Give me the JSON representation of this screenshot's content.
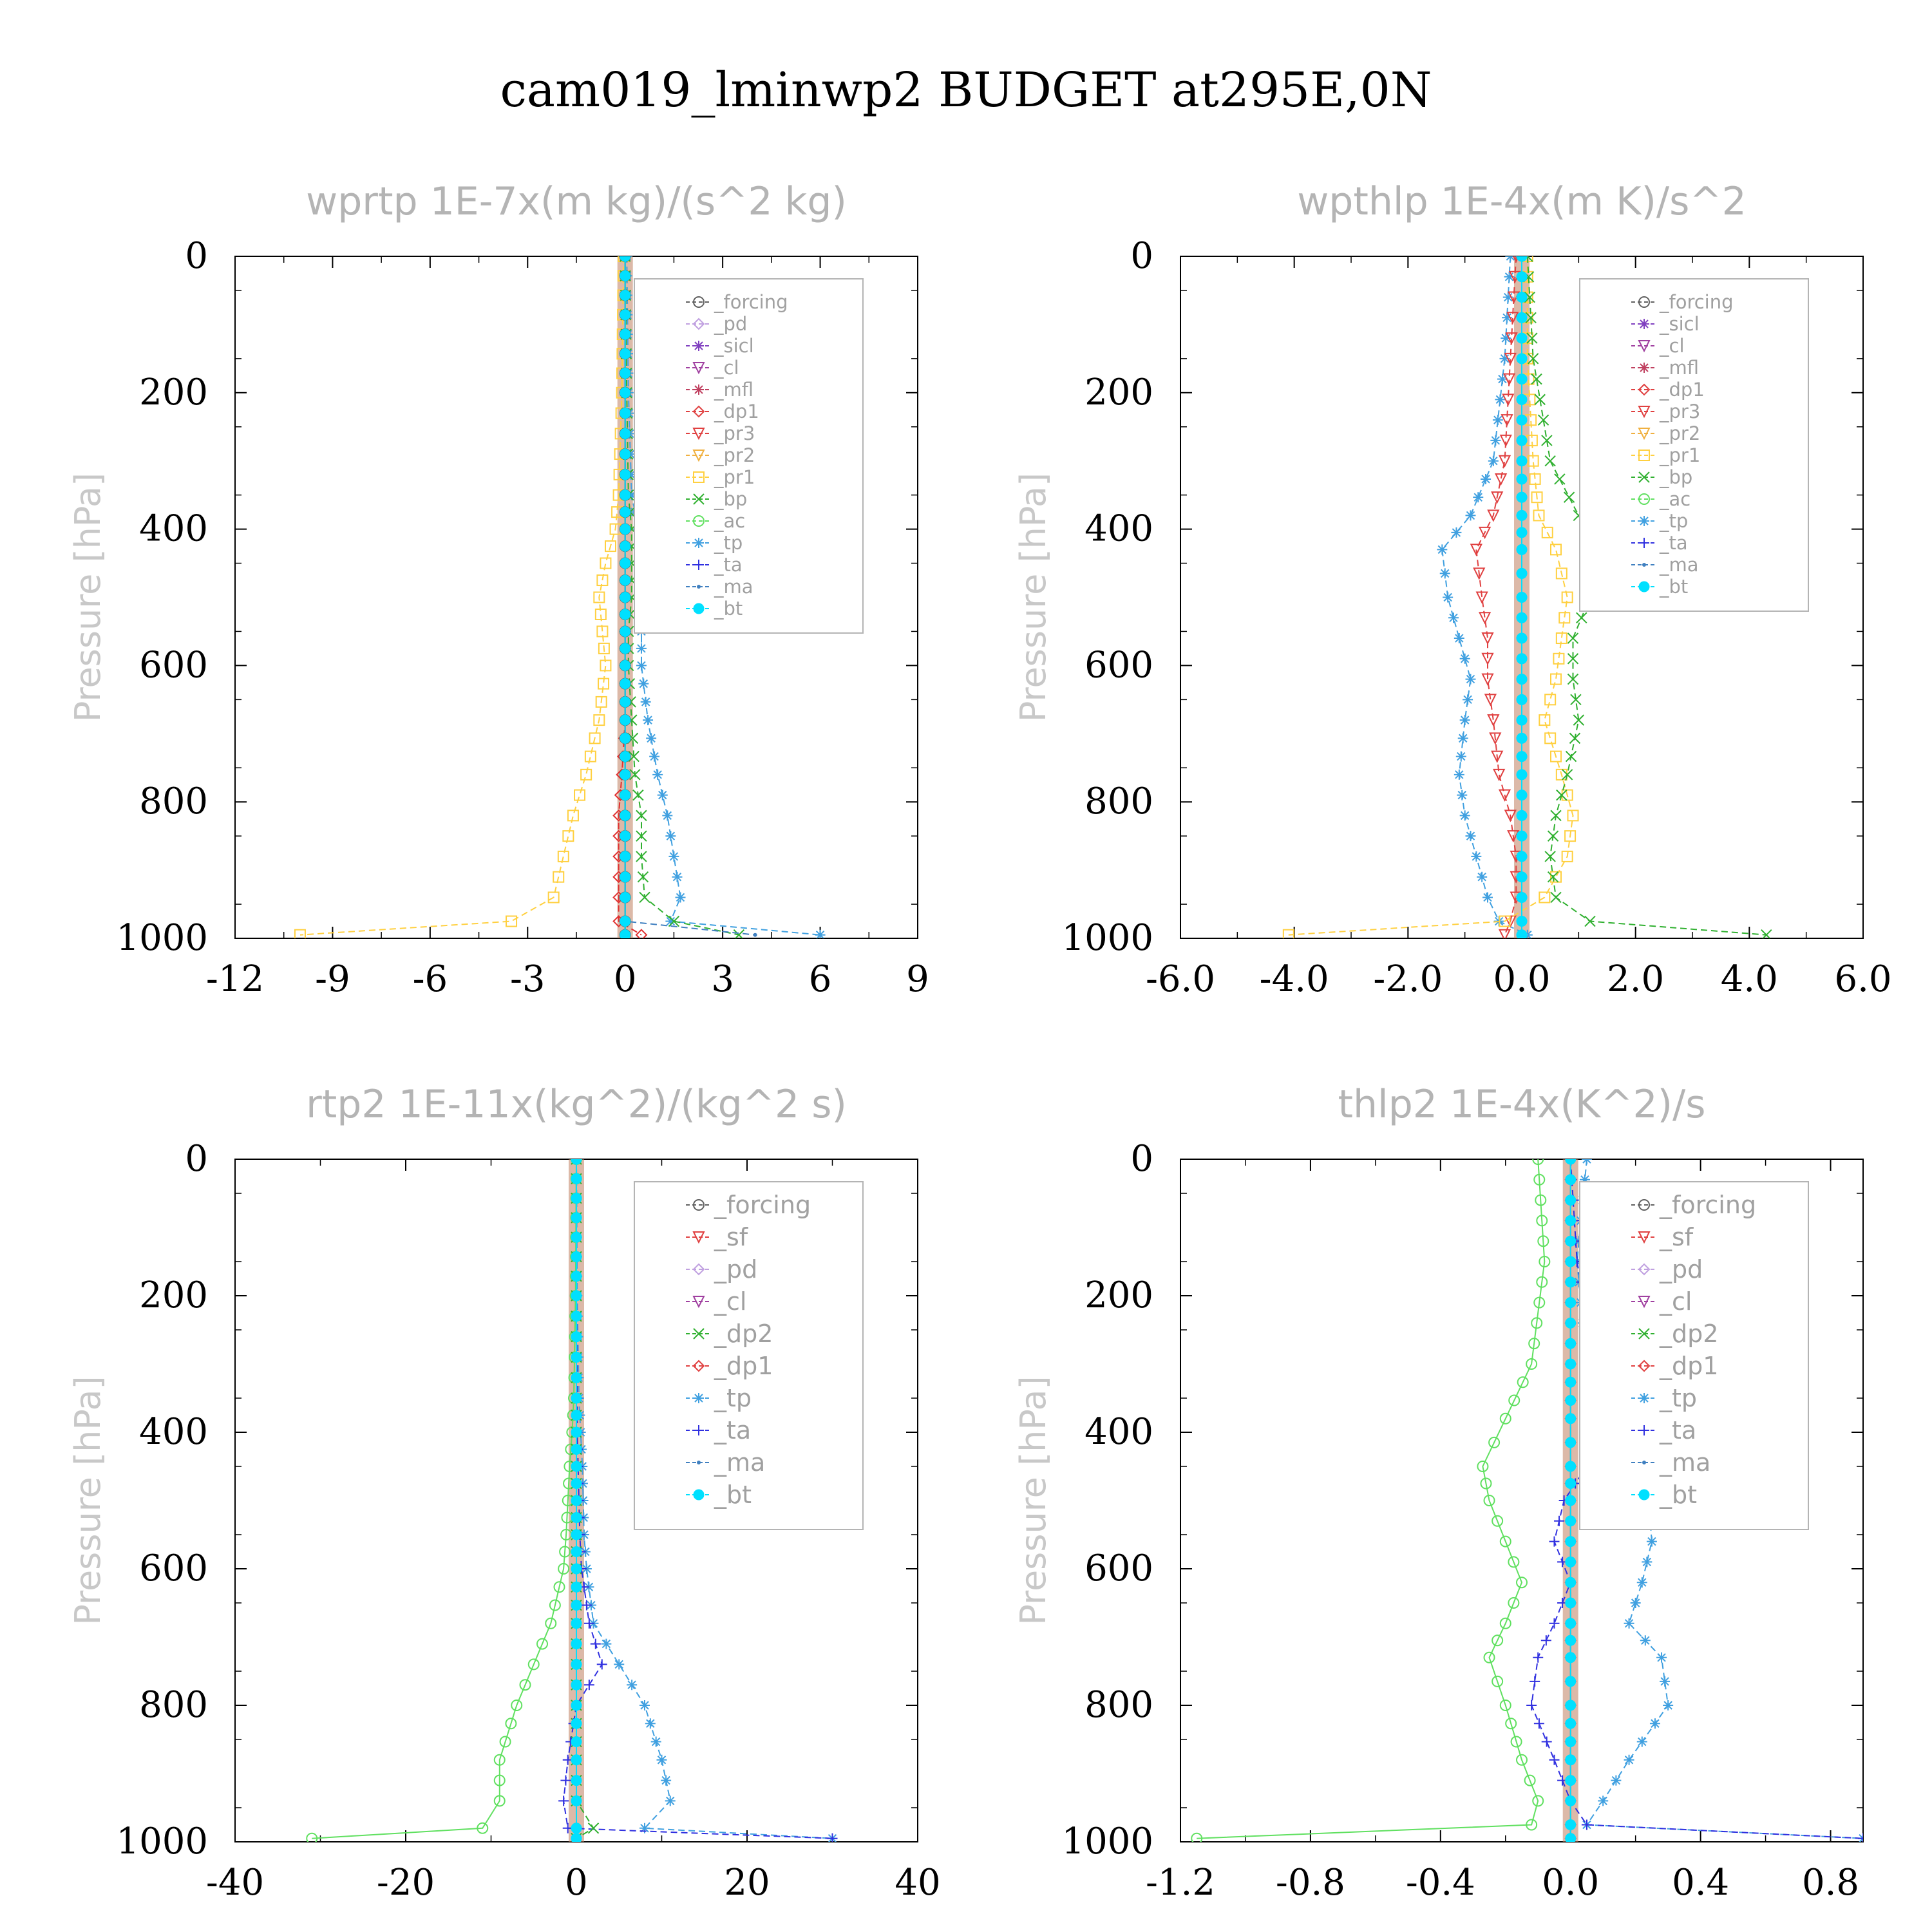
{
  "title": "cam019_lminwp2  BUDGET at295E,0N",
  "chart_data": [
    {
      "type": "line",
      "title": "wprtp   1E-7x(m kg)/(s^2 kg)",
      "ylabel": "Pressure [hPa]",
      "xlim": [
        -12,
        9
      ],
      "ylim": [
        1000,
        0
      ],
      "xticks": [
        "-12",
        "-9",
        "-6",
        "-3",
        "0",
        "3",
        "6",
        "9"
      ],
      "xtick_values": [
        -12,
        -9,
        -6,
        -3,
        0,
        3,
        6,
        9
      ],
      "yticks": [
        "0",
        "200",
        "400",
        "600",
        "800",
        "1000"
      ],
      "ytick_values": [
        0,
        200,
        400,
        600,
        800,
        1000
      ],
      "legend_position": "top-right",
      "legend": [
        "_forcing",
        "_pd",
        "_sicl",
        "_cl",
        "_mfl",
        "_dp1",
        "_pr3",
        "_pr2",
        "_pr1",
        "_bp",
        "_ac",
        "_tp",
        "_ta",
        "_ma",
        "_bt"
      ],
      "series": [
        {
          "name": "_pr1",
          "color": "#ffd040",
          "marker": "square",
          "x": [
            -0.05,
            -0.1,
            -0.2,
            -0.3,
            -0.6,
            -0.8,
            -0.7,
            -0.6,
            -0.8,
            -1.2,
            -1.6,
            -1.9,
            -2.2,
            -3.5,
            -10
          ],
          "y": [
            0,
            200,
            350,
            400,
            450,
            500,
            550,
            600,
            680,
            760,
            820,
            880,
            940,
            975,
            995
          ]
        },
        {
          "name": "_tp",
          "color": "#40a0e0",
          "marker": "asterisk",
          "x": [
            0.05,
            0.1,
            0.2,
            0.4,
            0.6,
            0.6,
            0.5,
            0.5,
            0.7,
            1.0,
            1.3,
            1.5,
            1.7,
            1.4,
            6
          ],
          "y": [
            0,
            200,
            350,
            400,
            450,
            500,
            550,
            600,
            680,
            760,
            820,
            880,
            940,
            975,
            995
          ]
        },
        {
          "name": "_bp",
          "color": "#30b030",
          "marker": "x",
          "x": [
            0.0,
            0.05,
            0.1,
            0.2,
            0.2,
            0.2,
            0.1,
            0.1,
            0.2,
            0.3,
            0.5,
            0.5,
            0.6,
            1.5,
            3.5
          ],
          "y": [
            0,
            200,
            350,
            400,
            450,
            500,
            550,
            600,
            680,
            760,
            820,
            880,
            940,
            975,
            995
          ]
        },
        {
          "name": "_dp1",
          "color": "#e03030",
          "marker": "diamond",
          "x": [
            0,
            0,
            0,
            0,
            0,
            0,
            0,
            0,
            0,
            -0.1,
            -0.2,
            -0.2,
            -0.2,
            -0.2,
            0.5
          ],
          "y": [
            0,
            200,
            350,
            400,
            450,
            500,
            550,
            600,
            680,
            760,
            820,
            880,
            940,
            975,
            995
          ]
        },
        {
          "name": "_ma",
          "color": "#4080c0",
          "marker": "dot",
          "x": [
            0,
            0,
            0,
            0,
            0,
            0,
            0,
            0,
            0,
            0,
            0,
            0,
            0,
            0,
            4
          ],
          "y": [
            0,
            200,
            350,
            400,
            450,
            500,
            550,
            600,
            680,
            760,
            820,
            880,
            940,
            975,
            995
          ]
        },
        {
          "name": "_forcing",
          "color": "#606060",
          "marker": "circle",
          "x": [
            0,
            0,
            0,
            0,
            0,
            0,
            0,
            0,
            0,
            0,
            0,
            0,
            0,
            0,
            0
          ],
          "y": [
            0,
            200,
            350,
            400,
            450,
            500,
            550,
            600,
            680,
            760,
            820,
            880,
            940,
            975,
            995
          ]
        },
        {
          "name": "_bt",
          "color": "#00e0ff",
          "marker": "filled-circle",
          "x": [
            0,
            0,
            0,
            0,
            0,
            0,
            0,
            0,
            0,
            0,
            0,
            0,
            0,
            0,
            0
          ],
          "y": [
            0,
            200,
            350,
            400,
            450,
            500,
            550,
            600,
            680,
            760,
            820,
            880,
            940,
            975,
            995
          ]
        }
      ]
    },
    {
      "type": "line",
      "title": "wpthlp   1E-4x(m K)/s^2",
      "ylabel": "Pressure [hPa]",
      "xlim": [
        -6,
        6
      ],
      "ylim": [
        1000,
        0
      ],
      "xticks": [
        "-6.0",
        "-4.0",
        "-2.0",
        "0.0",
        "2.0",
        "4.0",
        "6.0"
      ],
      "xtick_values": [
        -6,
        -4,
        -2,
        0,
        2,
        4,
        6
      ],
      "yticks": [
        "0",
        "200",
        "400",
        "600",
        "800",
        "1000"
      ],
      "ytick_values": [
        0,
        200,
        400,
        600,
        800,
        1000
      ],
      "legend_position": "top-right",
      "legend": [
        "_forcing",
        "_sicl",
        "_cl",
        "_mfl",
        "_dp1",
        "_pr3",
        "_pr2",
        "_pr1",
        "_bp",
        "_ac",
        "_tp",
        "_ta",
        "_ma",
        "_bt"
      ],
      "series": [
        {
          "name": "_tp",
          "color": "#40a0e0",
          "marker": "asterisk",
          "x": [
            -0.2,
            -0.3,
            -0.5,
            -0.9,
            -1.4,
            -1.3,
            -1.1,
            -0.9,
            -1.0,
            -1.1,
            -1.0,
            -0.8,
            -0.6,
            -0.4,
            0.1
          ],
          "y": [
            0,
            150,
            300,
            380,
            430,
            500,
            560,
            620,
            680,
            760,
            820,
            880,
            940,
            975,
            995
          ]
        },
        {
          "name": "_pr3",
          "color": "#e04040",
          "marker": "triangle-down",
          "x": [
            -0.1,
            -0.2,
            -0.3,
            -0.5,
            -0.8,
            -0.7,
            -0.6,
            -0.6,
            -0.5,
            -0.4,
            -0.2,
            -0.1,
            -0.1,
            -0.2,
            -0.3
          ],
          "y": [
            0,
            150,
            300,
            380,
            430,
            500,
            560,
            620,
            680,
            760,
            820,
            880,
            940,
            975,
            995
          ]
        },
        {
          "name": "_pr1",
          "color": "#ffd040",
          "marker": "square",
          "x": [
            0.1,
            0.1,
            0.2,
            0.3,
            0.6,
            0.8,
            0.7,
            0.6,
            0.4,
            0.7,
            0.9,
            0.8,
            0.4,
            -0.3,
            -4.1
          ],
          "y": [
            0,
            150,
            300,
            380,
            430,
            500,
            560,
            620,
            680,
            760,
            820,
            880,
            940,
            975,
            995
          ]
        },
        {
          "name": "_bp",
          "color": "#30b030",
          "marker": "x",
          "x": [
            0.1,
            0.2,
            0.5,
            1.0,
            1.3,
            1.2,
            0.9,
            0.9,
            1.0,
            0.8,
            0.6,
            0.5,
            0.6,
            1.2,
            4.3
          ],
          "y": [
            0,
            150,
            300,
            380,
            430,
            500,
            560,
            620,
            680,
            760,
            820,
            880,
            940,
            975,
            995
          ]
        },
        {
          "name": "_forcing",
          "color": "#c0b0e0",
          "marker": "diamond",
          "x": [
            0,
            0,
            0,
            0,
            0,
            0,
            0,
            0,
            0,
            0,
            0,
            0,
            0,
            0,
            0
          ],
          "y": [
            0,
            150,
            300,
            380,
            430,
            500,
            560,
            620,
            680,
            760,
            820,
            880,
            940,
            975,
            995
          ]
        },
        {
          "name": "_bt",
          "color": "#00e0ff",
          "marker": "filled-circle",
          "x": [
            0,
            0,
            0,
            0,
            0,
            0,
            0,
            0,
            0,
            0,
            0,
            0,
            0,
            0,
            0
          ],
          "y": [
            0,
            150,
            300,
            380,
            430,
            500,
            560,
            620,
            680,
            760,
            820,
            880,
            940,
            975,
            995
          ]
        }
      ]
    },
    {
      "type": "line",
      "title": "rtp2   1E-11x(kg^2)/(kg^2 s)",
      "ylabel": "Pressure [hPa]",
      "xlim": [
        -40,
        40
      ],
      "ylim": [
        1000,
        0
      ],
      "xticks": [
        "-40",
        "-20",
        "0",
        "20",
        "40"
      ],
      "xtick_values": [
        -40,
        -20,
        0,
        20,
        40
      ],
      "yticks": [
        "0",
        "200",
        "400",
        "600",
        "800",
        "1000"
      ],
      "ytick_values": [
        0,
        200,
        400,
        600,
        800,
        1000
      ],
      "legend_position": "top-right",
      "legend": [
        "_forcing",
        "_sf",
        "_pd",
        "_cl",
        "_dp2",
        "_dp1",
        "_tp",
        "_ta",
        "_ma",
        "_bt"
      ],
      "series": [
        {
          "name": "_dp1",
          "color": "#60e060",
          "marker": "circle",
          "x": [
            0,
            -0.1,
            -0.3,
            -0.5,
            -0.8,
            -1.0,
            -1.2,
            -1.5,
            -3,
            -5,
            -7,
            -9,
            -9,
            -11,
            -31
          ],
          "y": [
            0,
            200,
            350,
            400,
            450,
            500,
            550,
            600,
            680,
            740,
            800,
            880,
            940,
            980,
            995
          ]
        },
        {
          "name": "_tp",
          "color": "#40a0e0",
          "marker": "asterisk",
          "x": [
            0,
            0.1,
            0.3,
            0.5,
            0.7,
            0.8,
            0.9,
            1.2,
            2,
            5,
            8,
            10,
            11,
            8,
            30
          ],
          "y": [
            0,
            200,
            350,
            400,
            450,
            500,
            550,
            600,
            680,
            740,
            800,
            880,
            940,
            980,
            995
          ]
        },
        {
          "name": "_ta",
          "color": "#3030e0",
          "marker": "plus",
          "x": [
            0,
            0,
            0.1,
            0.1,
            0.2,
            0.3,
            0.4,
            0.6,
            1.5,
            3,
            0,
            -1,
            -1.5,
            -1,
            30
          ],
          "y": [
            0,
            200,
            350,
            400,
            450,
            500,
            550,
            600,
            680,
            740,
            800,
            880,
            940,
            980,
            995
          ]
        },
        {
          "name": "_dp2",
          "color": "#30b030",
          "marker": "x",
          "x": [
            0,
            0,
            0,
            0,
            0,
            0,
            0,
            0,
            0,
            0,
            0,
            0,
            0,
            2,
            0
          ],
          "y": [
            0,
            200,
            350,
            400,
            450,
            500,
            550,
            600,
            680,
            740,
            800,
            880,
            940,
            980,
            995
          ]
        },
        {
          "name": "_bt",
          "color": "#00e0ff",
          "marker": "filled-circle",
          "x": [
            0,
            0,
            0,
            0,
            0,
            0,
            0,
            0,
            0,
            0,
            0,
            0,
            0,
            0,
            0
          ],
          "y": [
            0,
            200,
            350,
            400,
            450,
            500,
            550,
            600,
            680,
            740,
            800,
            880,
            940,
            980,
            995
          ]
        }
      ]
    },
    {
      "type": "line",
      "title": "thlp2   1E-4x(K^2)/s",
      "ylabel": "Pressure [hPa]",
      "xlim": [
        -1.2,
        0.9
      ],
      "ylim": [
        1000,
        0
      ],
      "xticks": [
        "-1.2",
        "-0.8",
        "-0.4",
        "0.0",
        "0.4",
        "0.8"
      ],
      "xtick_values": [
        -1.2,
        -0.8,
        -0.4,
        0.0,
        0.4,
        0.8
      ],
      "yticks": [
        "0",
        "200",
        "400",
        "600",
        "800",
        "1000"
      ],
      "ytick_values": [
        0,
        200,
        400,
        600,
        800,
        1000
      ],
      "legend_position": "top-right",
      "legend": [
        "_forcing",
        "_sf",
        "_pd",
        "_cl",
        "_dp2",
        "_dp1",
        "_tp",
        "_ta",
        "_ma",
        "_bt"
      ],
      "series": [
        {
          "name": "_dp1",
          "color": "#60e060",
          "marker": "circle",
          "x": [
            -0.1,
            -0.08,
            -0.12,
            -0.2,
            -0.27,
            -0.25,
            -0.2,
            -0.15,
            -0.2,
            -0.25,
            -0.2,
            -0.15,
            -0.1,
            -0.12,
            -1.15
          ],
          "y": [
            0,
            150,
            300,
            380,
            450,
            500,
            560,
            620,
            680,
            730,
            800,
            880,
            940,
            975,
            995
          ]
        },
        {
          "name": "_tp",
          "color": "#40a0e0",
          "marker": "asterisk",
          "x": [
            0.05,
            0.02,
            0.05,
            0.12,
            0.22,
            0.24,
            0.25,
            0.22,
            0.18,
            0.28,
            0.3,
            0.18,
            0.1,
            0.05,
            0.9
          ],
          "y": [
            0,
            150,
            300,
            380,
            450,
            500,
            560,
            620,
            680,
            730,
            800,
            880,
            940,
            975,
            995
          ]
        },
        {
          "name": "_ta",
          "color": "#3030e0",
          "marker": "plus",
          "x": [
            0.0,
            0.02,
            0.08,
            0.14,
            0.05,
            -0.02,
            -0.05,
            0.0,
            -0.05,
            -0.1,
            -0.12,
            -0.05,
            0.0,
            0.05,
            0.9
          ],
          "y": [
            0,
            150,
            300,
            380,
            450,
            500,
            560,
            620,
            680,
            730,
            800,
            880,
            940,
            975,
            995
          ]
        },
        {
          "name": "_forcing",
          "color": "#e05050",
          "marker": "diamond",
          "x": [
            0,
            0,
            0,
            0,
            0,
            0,
            0,
            0,
            0,
            0,
            0,
            0,
            0,
            0,
            0
          ],
          "y": [
            0,
            150,
            300,
            380,
            450,
            500,
            560,
            620,
            680,
            730,
            800,
            880,
            940,
            975,
            995
          ]
        },
        {
          "name": "_bt",
          "color": "#00e0ff",
          "marker": "filled-circle",
          "x": [
            0,
            0,
            0,
            0,
            0,
            0,
            0,
            0,
            0,
            0,
            0,
            0,
            0,
            0,
            0
          ],
          "y": [
            0,
            150,
            300,
            380,
            450,
            500,
            560,
            620,
            680,
            730,
            800,
            880,
            940,
            975,
            995
          ]
        }
      ]
    }
  ]
}
